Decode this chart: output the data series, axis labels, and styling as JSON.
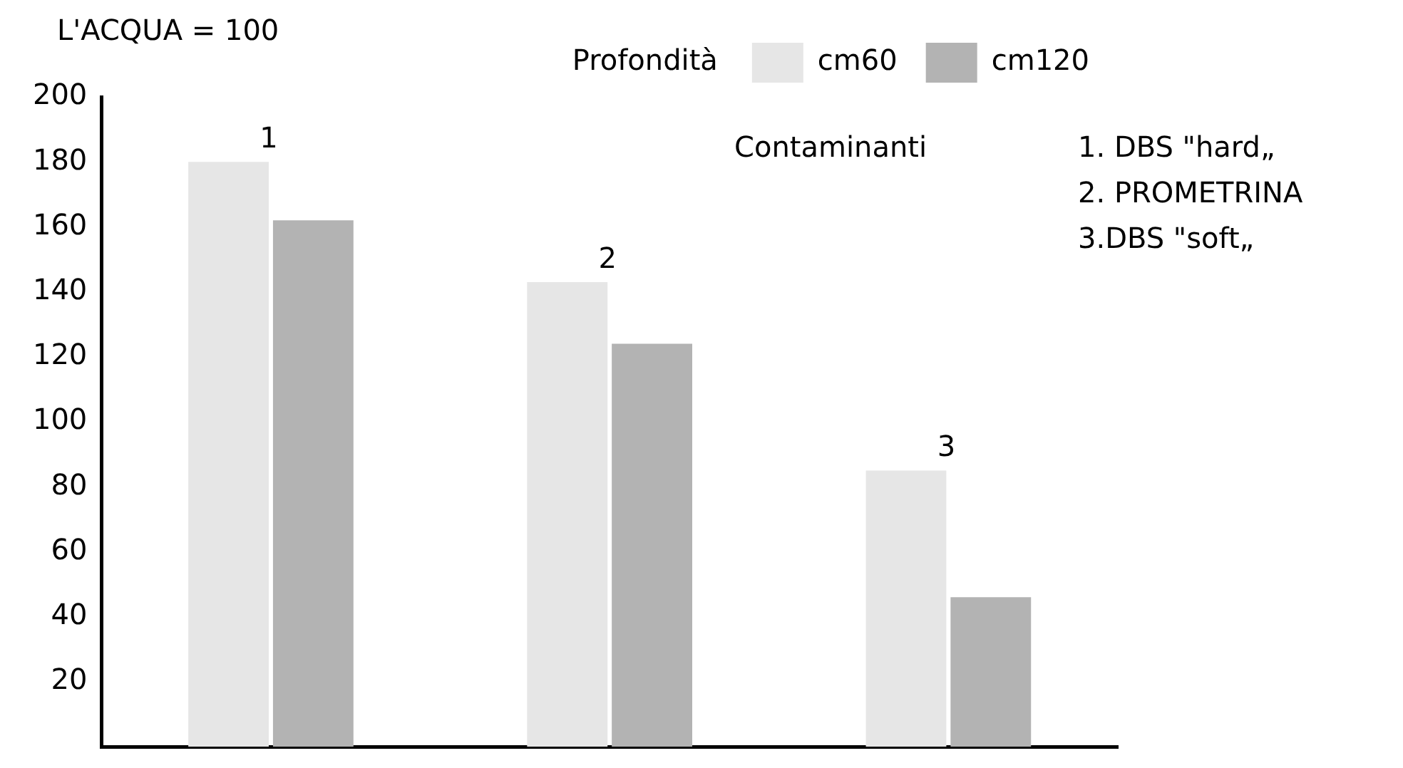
{
  "chart_data": {
    "type": "bar",
    "ylabel": "L'ACQUA = 100",
    "legend_title": "Profondità",
    "legend": "top right",
    "categories": [
      "1",
      "2",
      "3"
    ],
    "series": [
      {
        "name": "cm60",
        "color": "#e6e6e6",
        "values": [
          180,
          143,
          85
        ]
      },
      {
        "name": "cm120",
        "color": "#b3b3b3",
        "values": [
          162,
          124,
          46
        ]
      }
    ],
    "ylim": [
      0,
      200
    ],
    "yticks": [
      20,
      40,
      60,
      80,
      100,
      120,
      140,
      160,
      180,
      200
    ],
    "annotations": [
      "Contaminanti",
      "1. DBS \"hard„",
      "2. PROMETRINA",
      "3.DBS \"soft„"
    ]
  }
}
